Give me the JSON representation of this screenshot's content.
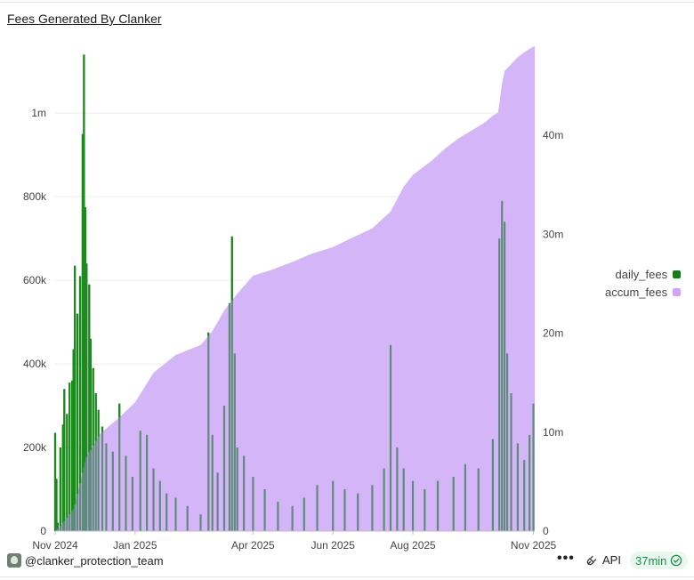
{
  "title": "Fees Generated By Clanker",
  "chart_data": {
    "type": "bar+area",
    "title": "Fees Generated By Clanker",
    "x_range": [
      "2024-11-01",
      "2025-11-02"
    ],
    "x_tick_labels": [
      "Nov 2024",
      "Jan 2025",
      "Apr 2025",
      "Jun 2025",
      "Aug 2025",
      "Nov 2025"
    ],
    "x_tick_dates": [
      "2024-11-01",
      "2025-01-01",
      "2025-04-01",
      "2025-06-01",
      "2025-08-01",
      "2025-11-01"
    ],
    "y_left": {
      "min": 0,
      "max": 1160000,
      "ticks": [
        0,
        200000,
        400000,
        600000,
        800000,
        1000000
      ],
      "tick_labels": [
        "0",
        "200k",
        "400k",
        "600k",
        "800k",
        "1m"
      ]
    },
    "y_right": {
      "min": 0,
      "max": 49000000,
      "ticks": [
        0,
        10000000,
        20000000,
        30000000,
        40000000
      ],
      "tick_labels": [
        "0",
        "10m",
        "20m",
        "30m",
        "40m"
      ]
    },
    "grid": true,
    "legend_position": "right",
    "series": [
      {
        "name": "daily_fees",
        "type": "bar",
        "axis": "left",
        "color": "#1a8a1a",
        "dim_color": "#5f8a7c",
        "points": [
          [
            "2024-11-01",
            235000
          ],
          [
            "2024-11-02",
            125000
          ],
          [
            "2024-11-03",
            20000
          ],
          [
            "2024-11-05",
            200000
          ],
          [
            "2024-11-07",
            255000
          ],
          [
            "2024-11-08",
            340000
          ],
          [
            "2024-11-10",
            280000
          ],
          [
            "2024-11-12",
            355000
          ],
          [
            "2024-11-14",
            360000
          ],
          [
            "2024-11-15",
            435000
          ],
          [
            "2024-11-16",
            635000
          ],
          [
            "2024-11-18",
            520000
          ],
          [
            "2024-11-20",
            610000
          ],
          [
            "2024-11-22",
            950000
          ],
          [
            "2024-11-23",
            1140000
          ],
          [
            "2024-11-24",
            775000
          ],
          [
            "2024-11-25",
            640000
          ],
          [
            "2024-11-27",
            590000
          ],
          [
            "2024-11-28",
            460000
          ],
          [
            "2024-11-30",
            390000
          ],
          [
            "2024-12-02",
            330000
          ],
          [
            "2024-12-04",
            290000
          ],
          [
            "2024-12-07",
            250000
          ],
          [
            "2024-12-10",
            210000
          ],
          [
            "2024-12-15",
            190000
          ],
          [
            "2024-12-20",
            305000
          ],
          [
            "2024-12-25",
            180000
          ],
          [
            "2024-12-30",
            130000
          ],
          [
            "2025-01-05",
            240000
          ],
          [
            "2025-01-10",
            230000
          ],
          [
            "2025-01-15",
            150000
          ],
          [
            "2025-01-20",
            120000
          ],
          [
            "2025-01-25",
            90000
          ],
          [
            "2025-02-01",
            80000
          ],
          [
            "2025-02-10",
            60000
          ],
          [
            "2025-02-20",
            40000
          ],
          [
            "2025-02-26",
            475000
          ],
          [
            "2025-03-01",
            230000
          ],
          [
            "2025-03-05",
            140000
          ],
          [
            "2025-03-10",
            300000
          ],
          [
            "2025-03-14",
            545000
          ],
          [
            "2025-03-16",
            705000
          ],
          [
            "2025-03-18",
            425000
          ],
          [
            "2025-03-20",
            200000
          ],
          [
            "2025-03-25",
            180000
          ],
          [
            "2025-04-01",
            130000
          ],
          [
            "2025-04-10",
            100000
          ],
          [
            "2025-04-20",
            70000
          ],
          [
            "2025-05-01",
            60000
          ],
          [
            "2025-05-10",
            80000
          ],
          [
            "2025-05-20",
            110000
          ],
          [
            "2025-06-01",
            120000
          ],
          [
            "2025-06-10",
            100000
          ],
          [
            "2025-06-20",
            90000
          ],
          [
            "2025-07-01",
            110000
          ],
          [
            "2025-07-10",
            150000
          ],
          [
            "2025-07-15",
            445000
          ],
          [
            "2025-07-20",
            200000
          ],
          [
            "2025-07-25",
            150000
          ],
          [
            "2025-08-01",
            120000
          ],
          [
            "2025-08-10",
            100000
          ],
          [
            "2025-08-20",
            120000
          ],
          [
            "2025-09-01",
            130000
          ],
          [
            "2025-09-10",
            160000
          ],
          [
            "2025-09-20",
            150000
          ],
          [
            "2025-10-01",
            220000
          ],
          [
            "2025-10-06",
            700000
          ],
          [
            "2025-10-08",
            790000
          ],
          [
            "2025-10-10",
            740000
          ],
          [
            "2025-10-12",
            425000
          ],
          [
            "2025-10-15",
            330000
          ],
          [
            "2025-10-20",
            210000
          ],
          [
            "2025-10-25",
            170000
          ],
          [
            "2025-10-29",
            230000
          ],
          [
            "2025-11-01",
            305000
          ]
        ]
      },
      {
        "name": "accum_fees",
        "type": "area",
        "axis": "right",
        "color": "#d4b6f8",
        "points": [
          [
            "2024-11-01",
            0
          ],
          [
            "2024-11-05",
            500000
          ],
          [
            "2024-11-15",
            2200000
          ],
          [
            "2024-11-25",
            7500000
          ],
          [
            "2024-12-05",
            9800000
          ],
          [
            "2024-12-20",
            11500000
          ],
          [
            "2025-01-01",
            13000000
          ],
          [
            "2025-01-15",
            16000000
          ],
          [
            "2025-02-01",
            17800000
          ],
          [
            "2025-02-20",
            18800000
          ],
          [
            "2025-03-01",
            20200000
          ],
          [
            "2025-03-10",
            22300000
          ],
          [
            "2025-03-20",
            24000000
          ],
          [
            "2025-04-01",
            25800000
          ],
          [
            "2025-04-15",
            26400000
          ],
          [
            "2025-05-01",
            27200000
          ],
          [
            "2025-05-15",
            28000000
          ],
          [
            "2025-06-01",
            28700000
          ],
          [
            "2025-06-15",
            29600000
          ],
          [
            "2025-07-01",
            30600000
          ],
          [
            "2025-07-15",
            32300000
          ],
          [
            "2025-07-25",
            34800000
          ],
          [
            "2025-08-01",
            36000000
          ],
          [
            "2025-08-15",
            37400000
          ],
          [
            "2025-08-25",
            38600000
          ],
          [
            "2025-09-05",
            39700000
          ],
          [
            "2025-09-15",
            40500000
          ],
          [
            "2025-09-25",
            41300000
          ],
          [
            "2025-10-01",
            42000000
          ],
          [
            "2025-10-05",
            42300000
          ],
          [
            "2025-10-08",
            45200000
          ],
          [
            "2025-10-10",
            46500000
          ],
          [
            "2025-10-15",
            47200000
          ],
          [
            "2025-10-20",
            47900000
          ],
          [
            "2025-10-25",
            48400000
          ],
          [
            "2025-10-31",
            48900000
          ],
          [
            "2025-11-02",
            49000000
          ]
        ]
      }
    ]
  },
  "legend": [
    {
      "label": "daily_fees",
      "color": "#1a7a1a"
    },
    {
      "label": "accum_fees",
      "color": "#cfa6f7"
    }
  ],
  "footer": {
    "author": "@clanker_protection_team",
    "more": "•••",
    "api_label": "API",
    "freshness": "37min"
  }
}
